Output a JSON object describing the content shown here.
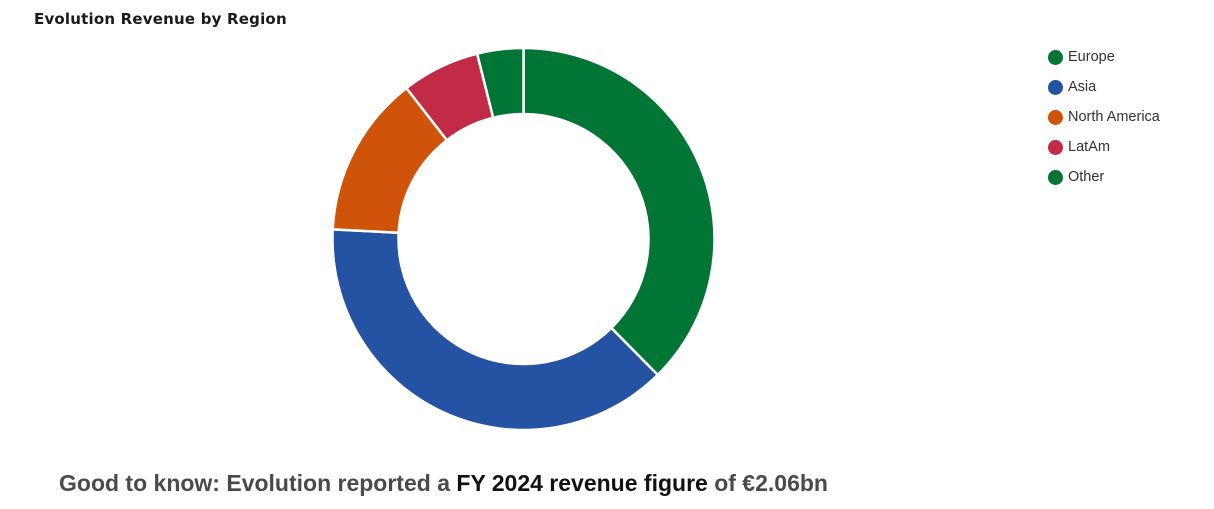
{
  "chart_data": {
    "type": "pie",
    "title": "Evolution Revenue by Region",
    "categories": [
      "Europe",
      "Asia",
      "North America",
      "LatAm",
      "Other"
    ],
    "values": [
      37.6,
      38.2,
      13.7,
      6.6,
      3.9
    ],
    "colors": [
      "#007534",
      "#2453a3",
      "#cf5308",
      "#c22a45",
      "#007534"
    ],
    "legend_position": "top-right"
  },
  "footnote": {
    "prefix": "Good to know: Evolution reported a ",
    "highlight": "FY 2024 revenue figure",
    "suffix": " of €2.06bn"
  }
}
